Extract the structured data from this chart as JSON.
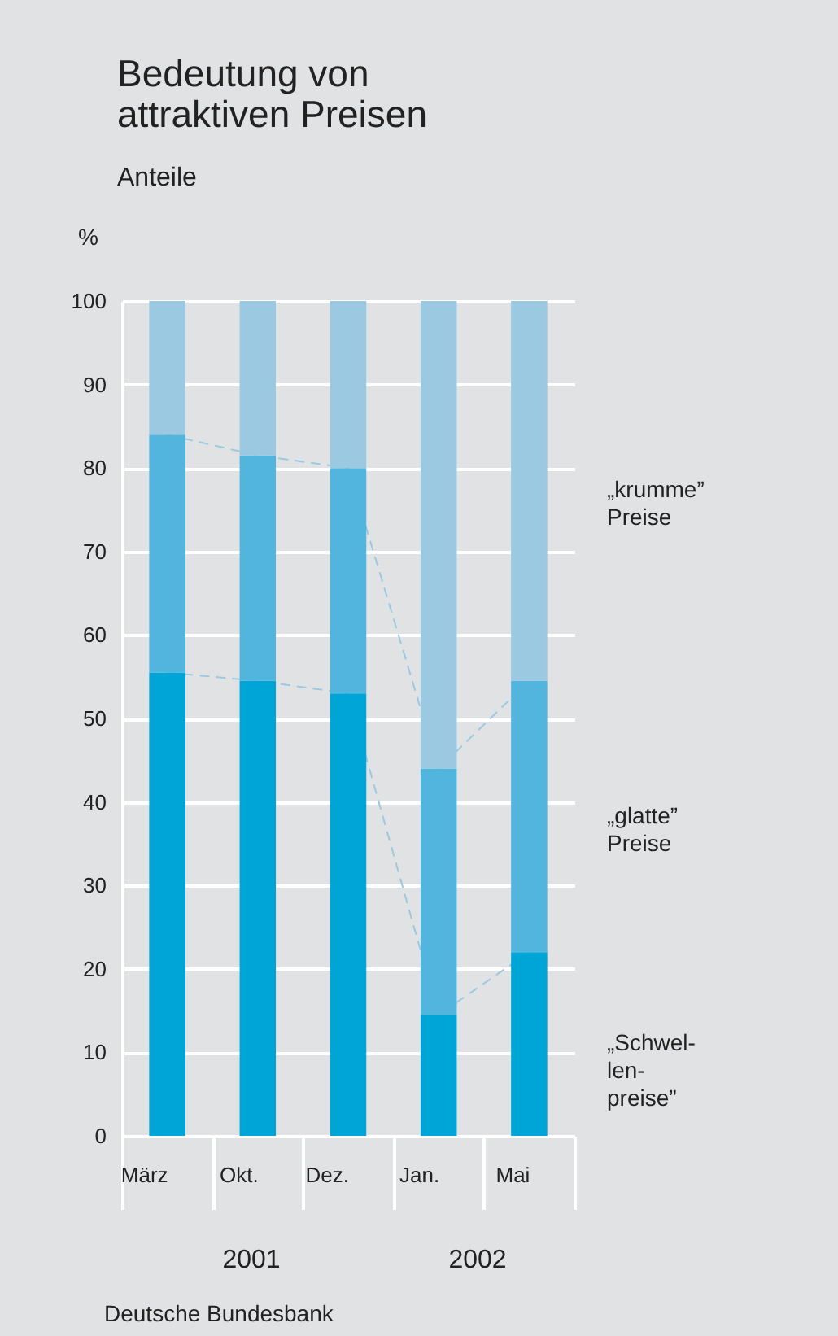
{
  "chart_data": {
    "type": "bar",
    "stacked": true,
    "title": "Bedeutung von attraktiven Preisen",
    "subtitle": "Anteile",
    "ylabel": "%",
    "categories": [
      "März",
      "Okt.",
      "Dez.",
      "Jan.",
      "Mai"
    ],
    "series": [
      {
        "name": "„Schwel-len-preise”",
        "color": "#00a5d8",
        "values": [
          55.5,
          54.5,
          53,
          14.5,
          22
        ]
      },
      {
        "name": "„glatte” Preise",
        "color": "#52b5dd",
        "values": [
          28.5,
          27,
          27,
          29.5,
          32.5
        ]
      },
      {
        "name": "„krumme” Preise",
        "color": "#9ac9e1",
        "values": [
          16,
          18.5,
          20,
          56,
          45.5
        ]
      }
    ],
    "ylim": [
      0,
      100
    ],
    "yticks": [
      0,
      10,
      20,
      30,
      40,
      50,
      60,
      70,
      80,
      90,
      100
    ],
    "grid": "y",
    "line_style": "dashed",
    "annotations": [
      "2001",
      "2002",
      "Deutsche Bundesbank"
    ]
  }
}
